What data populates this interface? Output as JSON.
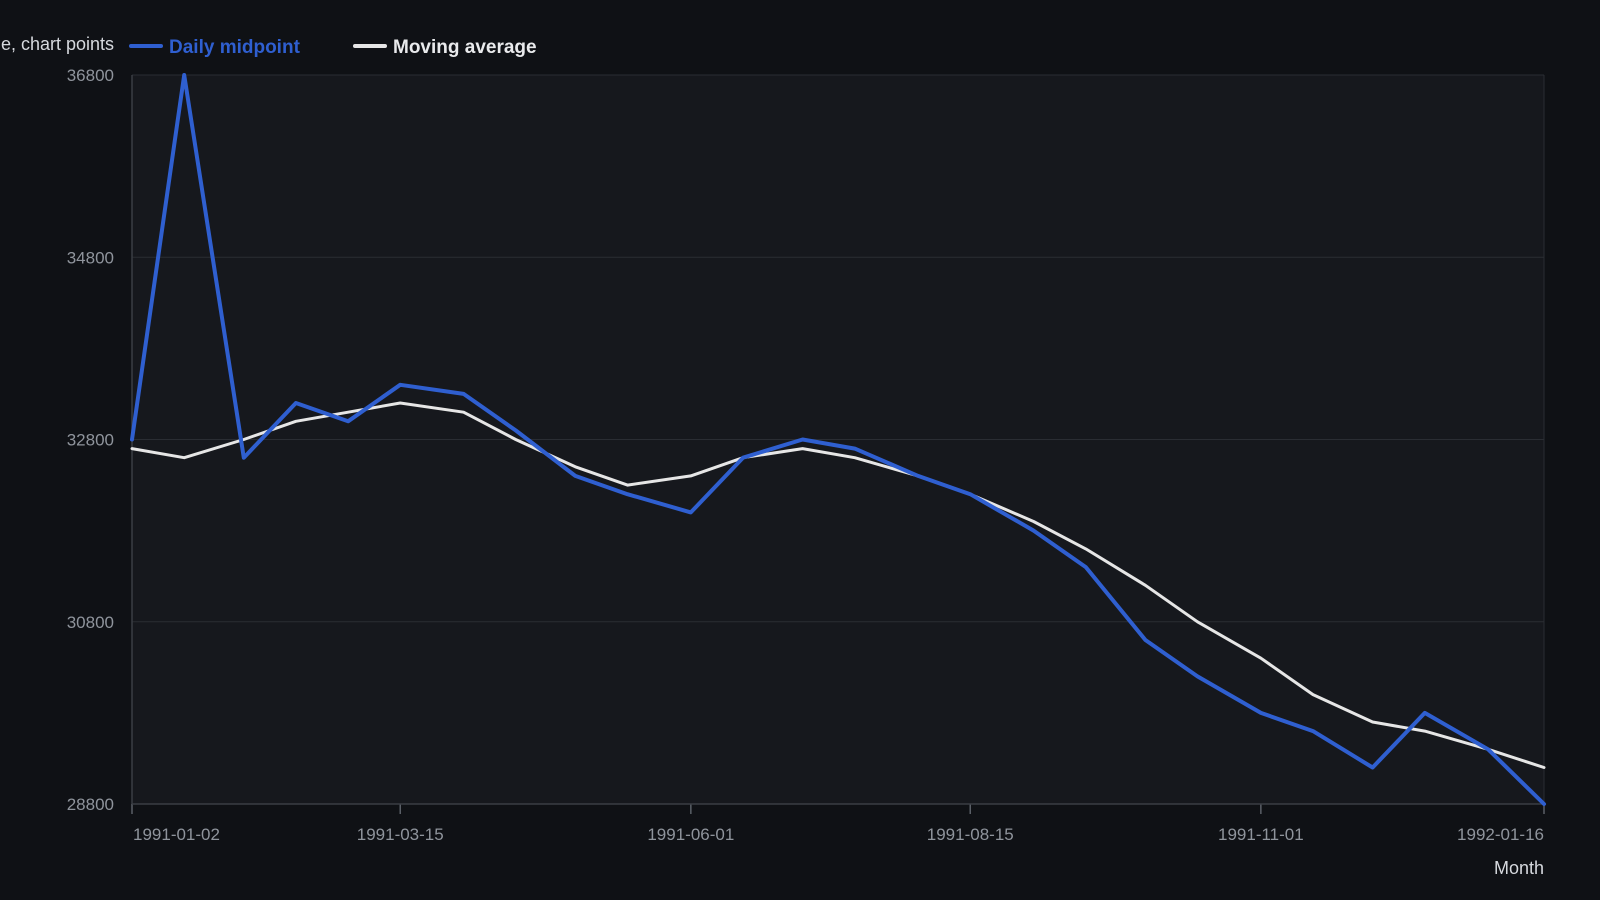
{
  "chart_data": {
    "type": "line",
    "title": "",
    "ylabel": "e, chart points",
    "xlabel": "Month",
    "legend_position": "top-left",
    "grid": true,
    "ylim": [
      28800,
      36800
    ],
    "yticks": [
      {
        "value": 28800,
        "label": "28800"
      },
      {
        "value": 30800,
        "label": "30800"
      },
      {
        "value": 32800,
        "label": "32800"
      },
      {
        "value": 34800,
        "label": "34800"
      },
      {
        "value": 36800,
        "label": "36800"
      }
    ],
    "xlim": [
      "1991-01-02",
      "1992-01-16"
    ],
    "xticks": [
      {
        "value": "1991-01-02",
        "label": "1991-01-02"
      },
      {
        "value": "1991-03-15",
        "label": "1991-03-15"
      },
      {
        "value": "1991-06-01",
        "label": "1991-06-01"
      },
      {
        "value": "1991-08-15",
        "label": "1991-08-15"
      },
      {
        "value": "1991-11-01",
        "label": "1991-11-01"
      },
      {
        "value": "1992-01-16",
        "label": "1992-01-16"
      }
    ],
    "x": [
      "1991-01-02",
      "1991-01-16",
      "1991-02-01",
      "1991-02-15",
      "1991-03-01",
      "1991-03-15",
      "1991-04-01",
      "1991-04-15",
      "1991-05-01",
      "1991-05-15",
      "1991-06-01",
      "1991-06-15",
      "1991-07-01",
      "1991-07-15",
      "1991-08-01",
      "1991-08-15",
      "1991-09-01",
      "1991-09-15",
      "1991-10-01",
      "1991-10-15",
      "1991-11-01",
      "1991-11-15",
      "1991-12-01",
      "1991-12-15",
      "1992-01-01",
      "1992-01-16"
    ],
    "series": [
      {
        "name": "Daily midpoint",
        "color": "#2f5fd0",
        "values": [
          32800,
          36800,
          32600,
          33200,
          33000,
          33400,
          33300,
          32900,
          32400,
          32200,
          32000,
          32600,
          32800,
          32700,
          32400,
          32200,
          31800,
          31400,
          30600,
          30200,
          29800,
          29600,
          29200,
          29800,
          29400,
          28800
        ]
      },
      {
        "name": "Moving average",
        "color": "#e6e6e6",
        "values": [
          32700,
          32600,
          32800,
          33000,
          33100,
          33200,
          33100,
          32800,
          32500,
          32300,
          32400,
          32600,
          32700,
          32600,
          32400,
          32200,
          31900,
          31600,
          31200,
          30800,
          30400,
          30000,
          29700,
          29600,
          29400,
          29200
        ]
      }
    ]
  }
}
